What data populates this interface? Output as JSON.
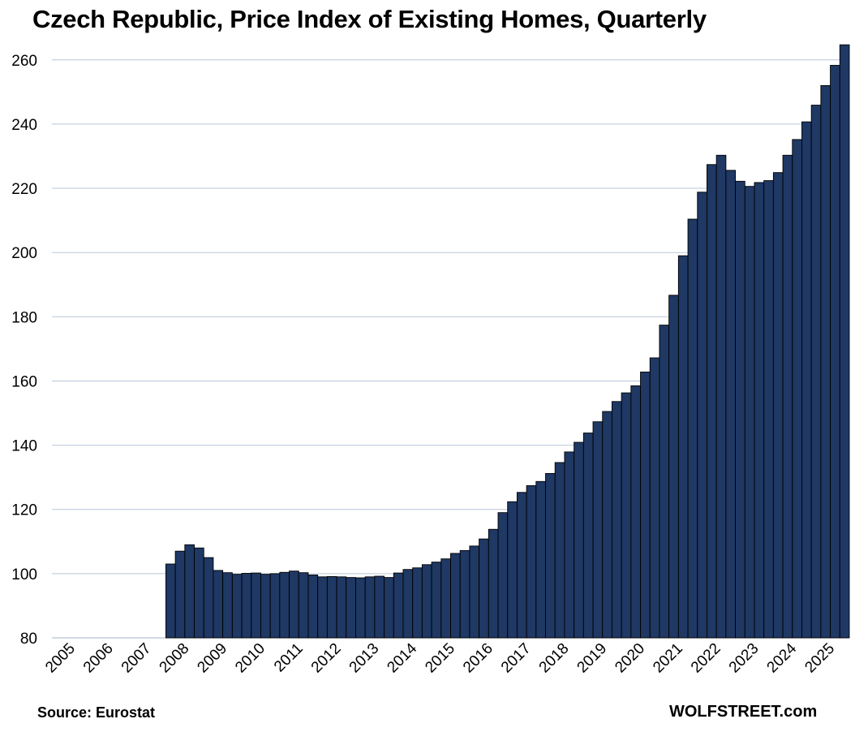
{
  "chart_data": {
    "type": "bar",
    "title": "Czech Republic, Price Index of Existing Homes, Quarterly",
    "xlabel": "",
    "ylabel": "",
    "ylim": [
      80,
      265
    ],
    "yticks": [
      80,
      100,
      120,
      140,
      160,
      180,
      200,
      220,
      240,
      260
    ],
    "year_labels": [
      "2005",
      "2006",
      "2007",
      "2008",
      "2009",
      "2010",
      "2011",
      "2012",
      "2013",
      "2014",
      "2015",
      "2016",
      "2017",
      "2018",
      "2019",
      "2020",
      "2021",
      "2022",
      "2023",
      "2024",
      "2025"
    ],
    "first_year": 2005,
    "bar_color": "#1f3864",
    "grid": true,
    "categories": [
      "2008-Q1",
      "2008-Q2",
      "2008-Q3",
      "2008-Q4",
      "2009-Q1",
      "2009-Q2",
      "2009-Q3",
      "2009-Q4",
      "2010-Q1",
      "2010-Q2",
      "2010-Q3",
      "2010-Q4",
      "2011-Q1",
      "2011-Q2",
      "2011-Q3",
      "2011-Q4",
      "2012-Q1",
      "2012-Q2",
      "2012-Q3",
      "2012-Q4",
      "2013-Q1",
      "2013-Q2",
      "2013-Q3",
      "2013-Q4",
      "2014-Q1",
      "2014-Q2",
      "2014-Q3",
      "2014-Q4",
      "2015-Q1",
      "2015-Q2",
      "2015-Q3",
      "2015-Q4",
      "2016-Q1",
      "2016-Q2",
      "2016-Q3",
      "2016-Q4",
      "2017-Q1",
      "2017-Q2",
      "2017-Q3",
      "2017-Q4",
      "2018-Q1",
      "2018-Q2",
      "2018-Q3",
      "2018-Q4",
      "2019-Q1",
      "2019-Q2",
      "2019-Q3",
      "2019-Q4",
      "2020-Q1",
      "2020-Q2",
      "2020-Q3",
      "2020-Q4",
      "2021-Q1",
      "2021-Q2",
      "2021-Q3",
      "2021-Q4",
      "2022-Q1",
      "2022-Q2",
      "2022-Q3",
      "2022-Q4",
      "2023-Q1",
      "2023-Q2",
      "2023-Q3",
      "2023-Q4",
      "2024-Q1",
      "2024-Q2",
      "2024-Q3",
      "2024-Q4",
      "2025-Q1",
      "2025-Q2",
      "2025-Q3",
      "2025-Q4"
    ],
    "values": [
      103.0,
      107.0,
      109.0,
      108.0,
      105.0,
      101.0,
      100.3,
      99.8,
      100.1,
      100.2,
      99.8,
      100.0,
      100.4,
      100.8,
      100.3,
      99.6,
      99.0,
      99.1,
      99.0,
      98.8,
      98.7,
      99.0,
      99.2,
      98.8,
      100.2,
      101.3,
      101.8,
      102.8,
      103.6,
      104.6,
      106.3,
      107.2,
      108.6,
      110.8,
      113.8,
      119.0,
      122.4,
      125.3,
      127.4,
      128.7,
      131.2,
      134.6,
      137.9,
      140.9,
      143.8,
      147.3,
      150.5,
      153.6,
      156.3,
      158.5,
      162.8,
      167.2,
      177.4,
      186.7,
      199.0,
      210.4,
      218.8,
      227.4,
      230.3,
      225.6,
      222.2,
      220.6,
      221.8,
      222.4,
      224.9,
      230.3,
      235.2,
      240.7,
      245.9,
      252.0,
      258.3,
      264.7
    ]
  },
  "footer": {
    "source": "Source: Eurostat",
    "brand": "WOLFSTREET.com"
  }
}
